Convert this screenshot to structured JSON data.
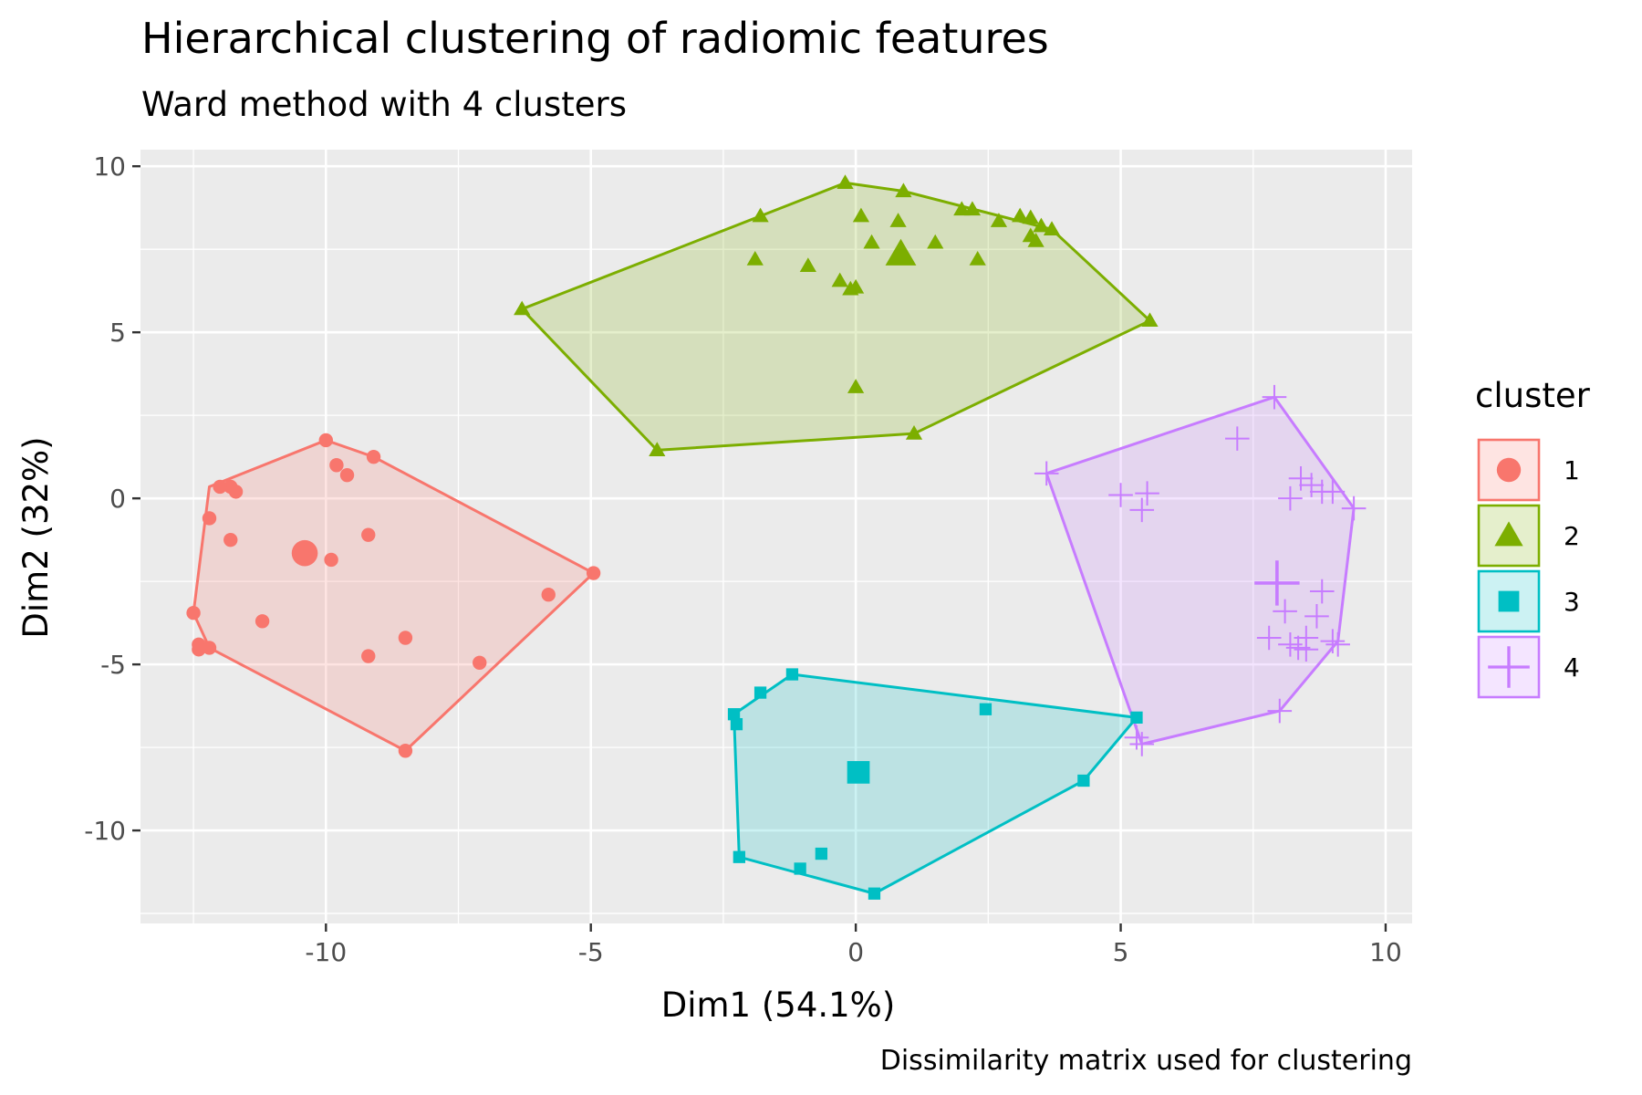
{
  "chart_data": {
    "type": "scatter",
    "title": "Hierarchical clustering of radiomic features",
    "subtitle": "Ward method with 4 clusters",
    "caption": "Dissimilarity matrix used for clustering",
    "xlabel": "Dim1 (54.1%)",
    "ylabel": "Dim2 (32%)",
    "xlim": [
      -13.5,
      10.5
    ],
    "ylim": [
      -12.8,
      10.5
    ],
    "x_ticks": [
      -10,
      -5,
      0,
      5,
      10
    ],
    "x_tick_labels": [
      "-10",
      "-5",
      "0",
      "5",
      "10"
    ],
    "y_ticks": [
      -10,
      -5,
      0,
      5,
      10
    ],
    "y_tick_labels": [
      "-10",
      "-5",
      "0",
      "5",
      "10"
    ],
    "grid": true,
    "legend": {
      "title": "cluster",
      "position": "right"
    },
    "series": [
      {
        "name": "1",
        "shape": "circle",
        "color": "#F8766D",
        "centroid": [
          -10.4,
          -1.65
        ],
        "hull": [
          [
            -10.0,
            1.75
          ],
          [
            -9.1,
            1.25
          ],
          [
            -4.95,
            -2.25
          ],
          [
            -8.5,
            -7.6
          ],
          [
            -12.2,
            -4.5
          ],
          [
            -12.5,
            -3.45
          ],
          [
            -12.2,
            0.35
          ]
        ],
        "points": [
          [
            -10.0,
            1.75
          ],
          [
            -9.1,
            1.25
          ],
          [
            -9.8,
            1.0
          ],
          [
            -9.6,
            0.7
          ],
          [
            -11.8,
            0.35
          ],
          [
            -12.0,
            0.35
          ],
          [
            -11.7,
            0.2
          ],
          [
            -12.2,
            -0.6
          ],
          [
            -11.8,
            -1.25
          ],
          [
            -9.9,
            -1.85
          ],
          [
            -9.2,
            -1.1
          ],
          [
            -4.95,
            -2.25
          ],
          [
            -5.8,
            -2.9
          ],
          [
            -11.2,
            -3.7
          ],
          [
            -12.5,
            -3.45
          ],
          [
            -12.4,
            -4.4
          ],
          [
            -12.4,
            -4.55
          ],
          [
            -12.2,
            -4.5
          ],
          [
            -8.5,
            -4.2
          ],
          [
            -9.2,
            -4.75
          ],
          [
            -7.1,
            -4.95
          ],
          [
            -8.5,
            -7.6
          ]
        ]
      },
      {
        "name": "2",
        "shape": "triangle",
        "color": "#7CAE00",
        "centroid": [
          0.85,
          7.35
        ],
        "hull": [
          [
            -0.2,
            9.5
          ],
          [
            0.9,
            9.25
          ],
          [
            3.7,
            8.1
          ],
          [
            5.55,
            5.35
          ],
          [
            1.1,
            1.95
          ],
          [
            -3.75,
            1.45
          ],
          [
            -6.3,
            5.7
          ],
          [
            -1.8,
            8.5
          ]
        ],
        "points": [
          [
            -0.2,
            9.5
          ],
          [
            0.9,
            9.25
          ],
          [
            0.1,
            8.5
          ],
          [
            0.8,
            8.35
          ],
          [
            -1.8,
            8.5
          ],
          [
            2.0,
            8.7
          ],
          [
            2.2,
            8.7
          ],
          [
            3.1,
            8.5
          ],
          [
            3.3,
            8.45
          ],
          [
            2.7,
            8.35
          ],
          [
            3.5,
            8.2
          ],
          [
            3.7,
            8.1
          ],
          [
            3.3,
            7.9
          ],
          [
            3.4,
            7.75
          ],
          [
            0.3,
            7.7
          ],
          [
            1.5,
            7.7
          ],
          [
            2.3,
            7.2
          ],
          [
            -1.9,
            7.2
          ],
          [
            -0.9,
            7.0
          ],
          [
            -0.3,
            6.55
          ],
          [
            0.0,
            6.35
          ],
          [
            -0.1,
            6.3
          ],
          [
            5.55,
            5.35
          ],
          [
            -6.3,
            5.7
          ],
          [
            0.0,
            3.35
          ],
          [
            1.1,
            1.95
          ],
          [
            -3.75,
            1.45
          ]
        ]
      },
      {
        "name": "3",
        "shape": "square",
        "color": "#00BFC4",
        "centroid": [
          0.05,
          -8.25
        ],
        "hull": [
          [
            -1.2,
            -5.3
          ],
          [
            5.3,
            -6.6
          ],
          [
            4.3,
            -8.5
          ],
          [
            0.35,
            -11.9
          ],
          [
            -2.2,
            -10.8
          ],
          [
            -2.3,
            -6.5
          ]
        ],
        "points": [
          [
            -1.2,
            -5.3
          ],
          [
            -1.8,
            -5.85
          ],
          [
            -2.3,
            -6.5
          ],
          [
            -2.25,
            -6.8
          ],
          [
            2.45,
            -6.35
          ],
          [
            5.3,
            -6.6
          ],
          [
            4.3,
            -8.5
          ],
          [
            -0.65,
            -10.7
          ],
          [
            -1.05,
            -11.15
          ],
          [
            -2.2,
            -10.8
          ],
          [
            0.35,
            -11.9
          ]
        ]
      },
      {
        "name": "4",
        "shape": "plus",
        "color": "#C77CFF",
        "centroid": [
          7.95,
          -2.55
        ],
        "hull": [
          [
            7.9,
            3.05
          ],
          [
            9.4,
            -0.3
          ],
          [
            9.1,
            -4.3
          ],
          [
            8.0,
            -6.4
          ],
          [
            5.4,
            -7.4
          ],
          [
            3.6,
            0.75
          ]
        ],
        "points": [
          [
            7.9,
            3.05
          ],
          [
            7.2,
            1.8
          ],
          [
            3.6,
            0.75
          ],
          [
            8.4,
            0.6
          ],
          [
            8.6,
            0.4
          ],
          [
            8.8,
            0.2
          ],
          [
            9.0,
            0.2
          ],
          [
            5.0,
            0.1
          ],
          [
            5.5,
            0.15
          ],
          [
            5.4,
            -0.35
          ],
          [
            8.2,
            0.0
          ],
          [
            9.4,
            -0.3
          ],
          [
            8.8,
            -2.8
          ],
          [
            8.1,
            -3.4
          ],
          [
            8.7,
            -3.55
          ],
          [
            8.5,
            -4.2
          ],
          [
            7.8,
            -4.2
          ],
          [
            8.2,
            -4.4
          ],
          [
            8.35,
            -4.5
          ],
          [
            8.5,
            -4.55
          ],
          [
            9.0,
            -4.3
          ],
          [
            9.1,
            -4.4
          ],
          [
            8.0,
            -6.4
          ],
          [
            5.4,
            -7.4
          ],
          [
            5.3,
            -7.2
          ]
        ]
      }
    ]
  }
}
